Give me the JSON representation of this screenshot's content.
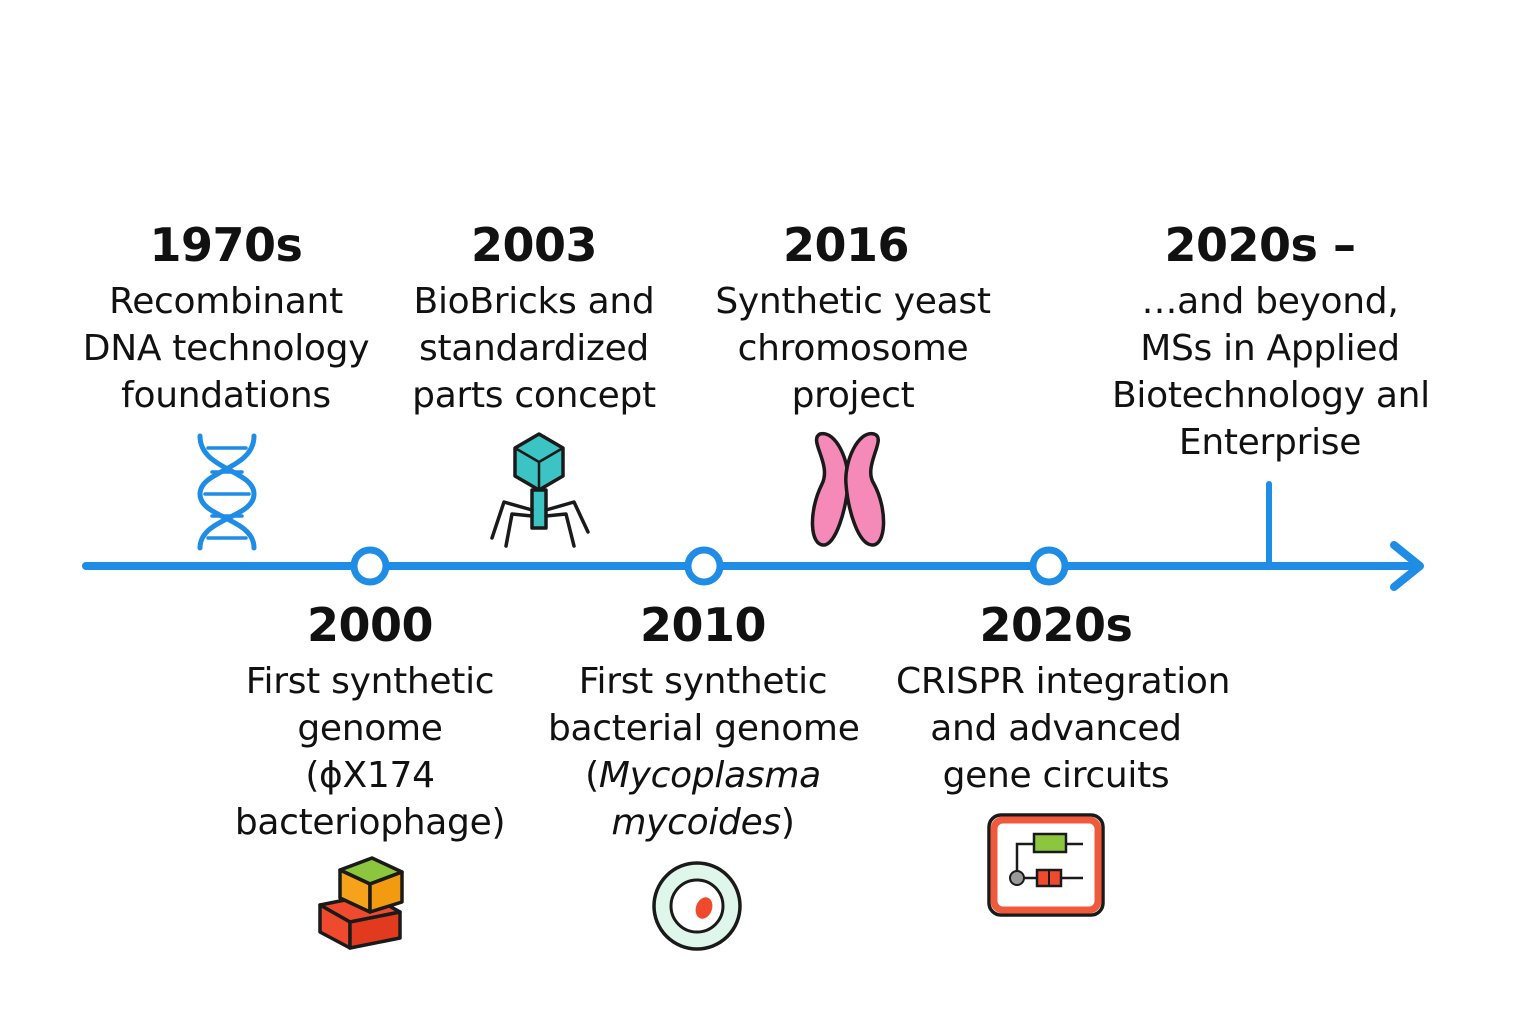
{
  "timeline": {
    "events": [
      {
        "id": "e1970s",
        "year": "1970s",
        "lines": [
          "Recombinant",
          "DNA technology",
          "foundations"
        ],
        "icon": "dna-helix-icon"
      },
      {
        "id": "e2000",
        "year": "2000",
        "lines": [
          "First synthetic",
          "genome",
          "(ϕX174",
          "bacteriophage)"
        ],
        "icon": "stacked-blocks-icon"
      },
      {
        "id": "e2003",
        "year": "2003",
        "lines": [
          "BioBricks and",
          "standardized",
          "parts concept"
        ],
        "icon": "bacteriophage-icon"
      },
      {
        "id": "e2010",
        "year": "2010",
        "lines": [
          "First synthetic",
          "bacterial genome"
        ],
        "italic_line": {
          "open": "(",
          "italic": "Mycoplasma",
          "italic2": "mycoides",
          "close": ")"
        },
        "icon": "cell-icon"
      },
      {
        "id": "e2016",
        "year": "2016",
        "lines": [
          "Synthetic yeast",
          "chromosome",
          "project"
        ],
        "icon": "chromosome-icon"
      },
      {
        "id": "e2020s",
        "year": "2020s",
        "lines": [
          "CRISPR integration",
          "and advanced",
          "gene circuits"
        ],
        "icon": "gene-circuit-icon"
      },
      {
        "id": "e2020s-beyond",
        "year": "2020s –",
        "lines": [
          "…and beyond,",
          "MSs in Applied",
          "Biotechnology anl",
          "Enterprise"
        ],
        "icon": ""
      }
    ]
  },
  "colors": {
    "axis": "#1f8ce6",
    "dna": "#1f8ce6",
    "phage": "#3cc3c3",
    "chromosome": "#f58ab8",
    "block_red": "#f04a2e",
    "block_orange": "#f7a21b",
    "block_green": "#8cc63f",
    "cell_fill": "#dff7ea",
    "cell_nucleus": "#f04a2e",
    "circuit_border": "#f05a3c",
    "circuit_green": "#8cc63f",
    "circuit_red": "#f04a2e"
  }
}
